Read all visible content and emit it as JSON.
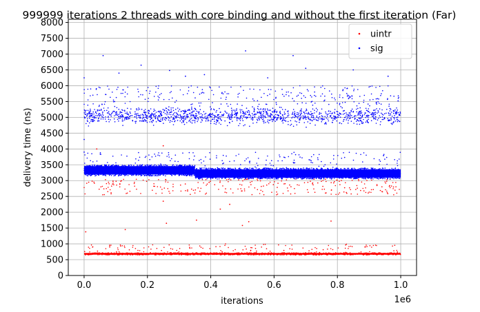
{
  "chart_data": {
    "type": "scatter",
    "title": "999999 iterations 2 threads with core binding and without the first iteration (Far)",
    "xlabel": "iterations",
    "ylabel": "delivery time (ns)",
    "x_offset_label": "1e6",
    "xlim": [
      -50000,
      1050000
    ],
    "ylim": [
      0,
      8100
    ],
    "x_ticks": [
      0,
      200000,
      400000,
      600000,
      800000,
      1000000
    ],
    "x_tick_labels": [
      "0.0",
      "0.2",
      "0.4",
      "0.6",
      "0.8",
      "1.0"
    ],
    "y_ticks": [
      0,
      500,
      1000,
      1500,
      2000,
      2500,
      3000,
      3500,
      4000,
      4500,
      5000,
      5500,
      6000,
      6500,
      7000,
      7500,
      8000
    ],
    "y_tick_labels": [
      "0",
      "500",
      "1000",
      "1500",
      "2000",
      "2500",
      "3000",
      "3500",
      "4000",
      "4500",
      "5000",
      "5500",
      "6000",
      "6500",
      "7000",
      "7500",
      "8000"
    ],
    "grid": true,
    "legend_position": "top-right",
    "series": [
      {
        "name": "uintr",
        "color": "#ff0000",
        "bands": [
          {
            "x": [
              0,
              1000000
            ],
            "y": [
              650,
              720
            ]
          },
          {
            "x": [
              0,
              1000000
            ],
            "y": [
              720,
              1000
            ]
          },
          {
            "x": [
              0,
              1000000
            ],
            "y": [
              2550,
              3050
            ]
          }
        ],
        "outliers": [
          [
            5000,
            1380
          ],
          [
            130000,
            1450
          ],
          [
            260000,
            1650
          ],
          [
            355000,
            1750
          ],
          [
            500000,
            1580
          ],
          [
            520000,
            1700
          ],
          [
            780000,
            1720
          ],
          [
            250000,
            2350
          ],
          [
            430000,
            2100
          ],
          [
            460000,
            2250
          ],
          [
            250000,
            4100
          ],
          [
            40000,
            4000
          ]
        ]
      },
      {
        "name": "sig",
        "color": "#0000ff",
        "bands": [
          {
            "x": [
              0,
              350000
            ],
            "y": [
              3150,
              3500
            ]
          },
          {
            "x": [
              350000,
              1000000
            ],
            "y": [
              3050,
              3400
            ]
          },
          {
            "x": [
              0,
              1000000
            ],
            "y": [
              3400,
              3900
            ]
          },
          {
            "x": [
              0,
              1000000
            ],
            "y": [
              4700,
              5400
            ]
          },
          {
            "x": [
              0,
              1000000
            ],
            "y": [
              5400,
              6000
            ]
          }
        ],
        "outliers": [
          [
            60000,
            6950
          ],
          [
            510000,
            7100
          ],
          [
            660000,
            6950
          ],
          [
            700000,
            6550
          ],
          [
            850000,
            6500
          ],
          [
            180000,
            6650
          ],
          [
            270000,
            6480
          ],
          [
            0,
            6250
          ],
          [
            110000,
            6400
          ],
          [
            960000,
            6300
          ],
          [
            380000,
            6350
          ],
          [
            580000,
            6250
          ],
          [
            320000,
            6300
          ],
          [
            0,
            3900
          ],
          [
            0,
            4300
          ]
        ]
      }
    ]
  }
}
